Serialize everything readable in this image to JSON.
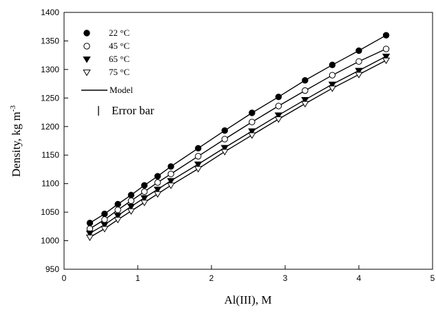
{
  "chart_data": {
    "type": "line",
    "xlabel": "Al(III), M",
    "ylabel": "Density, kg m",
    "ylabel_sup": "-3",
    "xlim": [
      0,
      5
    ],
    "ylim": [
      950,
      1400
    ],
    "x_ticks": [
      "0",
      "1",
      "2",
      "3",
      "4",
      "5"
    ],
    "y_ticks": [
      "950",
      "1000",
      "1050",
      "1100",
      "1150",
      "1200",
      "1250",
      "1300",
      "1350",
      "1400"
    ],
    "grid": false,
    "legend_position": "top-left",
    "x": [
      0.35,
      0.55,
      0.73,
      0.91,
      1.09,
      1.27,
      1.45,
      1.82,
      2.18,
      2.55,
      2.91,
      3.27,
      3.64,
      4.0,
      4.37
    ],
    "series": [
      {
        "name": "22 °C",
        "marker": "filled-circle",
        "values": [
          1031,
          1047,
          1064,
          1080,
          1097,
          1113,
          1130,
          1162,
          1193,
          1224,
          1252,
          1281,
          1308,
          1333,
          1360
        ]
      },
      {
        "name": "45 °C",
        "marker": "open-circle",
        "values": [
          1021,
          1037,
          1054,
          1070,
          1086,
          1102,
          1117,
          1148,
          1178,
          1208,
          1236,
          1263,
          1290,
          1314,
          1336
        ]
      },
      {
        "name": "65 °C",
        "marker": "filled-triangle-down",
        "values": [
          1013,
          1028,
          1044,
          1060,
          1075,
          1090,
          1105,
          1134,
          1163,
          1192,
          1220,
          1247,
          1274,
          1298,
          1323
        ]
      },
      {
        "name": "75 °C",
        "marker": "open-triangle-down",
        "values": [
          1006,
          1021,
          1037,
          1052,
          1067,
          1082,
          1097,
          1126,
          1156,
          1185,
          1213,
          1240,
          1267,
          1291,
          1316
        ]
      }
    ],
    "legend": {
      "model_label": "Model",
      "error_bar_label": "Error bar"
    }
  }
}
